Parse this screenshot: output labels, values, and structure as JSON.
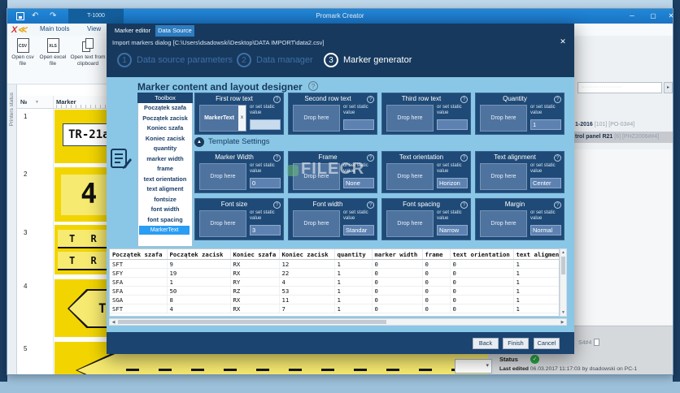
{
  "colors": {
    "titlebar": "#1e7fd0",
    "dialog_navy": "#17395e",
    "accent_blue": "#2d7dc1",
    "content_blue": "#8ac7e6",
    "marker_yellow": "#f2d500",
    "selected_item_blue": "#2a9df4",
    "status_green": "#26a344"
  },
  "icons": {
    "undo": "↶",
    "redo": "↷",
    "minimize": "─",
    "maximize": "▢",
    "close": "✕",
    "dialog_close": "✕",
    "help": "?",
    "collapse": "▲",
    "check": "✓",
    "dropdown": "▾",
    "filter": "▼",
    "search_go": "▸",
    "scroll_up": "▲",
    "scroll_down": "▼",
    "scroll_left": "◀",
    "scroll_right": "▶"
  },
  "app": {
    "titlebar": {
      "document_tab": "T-1000",
      "title": "Promark Creator"
    },
    "menu": {
      "main_tools": "Main tools",
      "view": "View"
    },
    "ribbon": {
      "open_csv": "Open csv file",
      "open_excel": "Open excel file",
      "open_clipboard": "Open text from clipboard",
      "csv_badge": "CSV",
      "xls_badge": "XLS",
      "group_label": "Choose Data Source"
    },
    "document_tab": "Marker set control panel R21",
    "printers_strip": "Printers status",
    "marker_table": {
      "num_header": "№",
      "marker_header": "Marker",
      "rows": [
        {
          "num": "1",
          "text": "TR-21a"
        },
        {
          "num": "2",
          "text": "4"
        },
        {
          "num": "3",
          "line1": "T R -",
          "line2": "T R -"
        },
        {
          "num": "4",
          "text": "T R"
        },
        {
          "num": "5",
          "text": ""
        }
      ]
    },
    "right_panel": {
      "search_placeholder": "······················",
      "items": [
        {
          "name": "1-2016",
          "meta": "[101] [PO-03#4]"
        },
        {
          "name": "trol panel R21",
          "meta": "[6] [PHZ2006##4]"
        }
      ],
      "fragment": "S4#4",
      "status_label": "Status",
      "last_edited_label": "Last edited",
      "last_edited_value": "06.03.2017 11:17:03 by dsadowski on PC-1"
    }
  },
  "dialog": {
    "tabs": {
      "marker_editor": "Marker editor",
      "data_source": "Data Source"
    },
    "title": "Import markers dialog [C:\\Users\\dsadowski\\Desktop\\DATA IMPORT\\data2.csv]",
    "steps": [
      {
        "num": "1",
        "label": "Data source parameters"
      },
      {
        "num": "2",
        "label": "Data manager"
      },
      {
        "num": "3",
        "label": "Marker generator"
      }
    ],
    "heading": "Marker content and layout designer",
    "toolbox": {
      "title": "Toolbox",
      "items": [
        "Początek szafa",
        "Początek zacisk",
        "Koniec szafa",
        "Koniec zacisk",
        "quantity",
        "marker width",
        "frame",
        "text orientation",
        "text aligment",
        "fontsize",
        "font width",
        "font spacing",
        "margin"
      ],
      "dragged_item": "MarkerText"
    },
    "template_settings_label": "Template Settings",
    "drop_label": "Drop here",
    "static_label": "or set static value",
    "panels": {
      "row1": [
        {
          "title": "First row text",
          "chip": "MarkerText",
          "value": ""
        },
        {
          "title": "Second row text",
          "value": ""
        },
        {
          "title": "Third row text",
          "value": ""
        },
        {
          "title": "Quantity",
          "value": "1"
        }
      ],
      "row2": [
        {
          "title": "Marker Width",
          "value": "0"
        },
        {
          "title": "Frame",
          "value": "None"
        },
        {
          "title": "Text orientation",
          "value": "Horizon"
        },
        {
          "title": "Text alignment",
          "value": "Center"
        }
      ],
      "row3": [
        {
          "title": "Font size",
          "value": "3"
        },
        {
          "title": "Font width",
          "value": "Standar"
        },
        {
          "title": "Font spacing",
          "value": "Narrow"
        },
        {
          "title": "Margin",
          "value": "Normal"
        }
      ]
    },
    "table": {
      "headers": [
        "Początek szafa",
        "Początek zacisk",
        "Koniec szafa",
        "Koniec zacisk",
        "quantity",
        "marker width",
        "frame",
        "text orientation",
        "text aligment"
      ],
      "rows": [
        [
          "SFT",
          "9",
          "RX",
          "12",
          "1",
          "0",
          "0",
          "0",
          "1"
        ],
        [
          "SFY",
          "19",
          "RX",
          "22",
          "1",
          "0",
          "0",
          "0",
          "1"
        ],
        [
          "SFA",
          "1",
          "RY",
          "4",
          "1",
          "0",
          "0",
          "0",
          "1"
        ],
        [
          "SFA",
          "50",
          "RZ",
          "53",
          "1",
          "0",
          "0",
          "0",
          "1"
        ],
        [
          "SGA",
          "8",
          "RX",
          "11",
          "1",
          "0",
          "0",
          "0",
          "1"
        ],
        [
          "SFT",
          "4",
          "RX",
          "7",
          "1",
          "0",
          "0",
          "0",
          "1"
        ]
      ]
    },
    "buttons": {
      "back": "Back",
      "finish": "Finish",
      "cancel": "Cancel"
    }
  },
  "watermark": "FILECR"
}
